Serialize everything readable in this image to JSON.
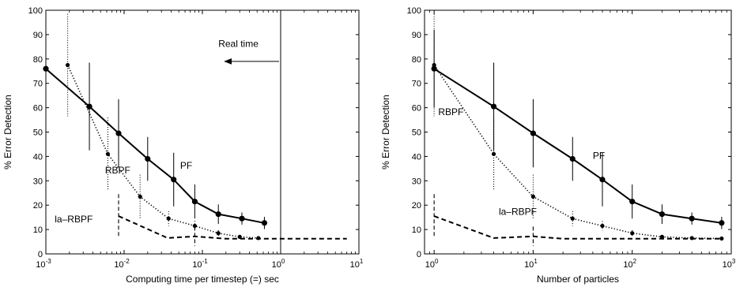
{
  "chart_data": [
    {
      "type": "line",
      "xscale": "log",
      "xlim": [
        0.001,
        10
      ],
      "ylim": [
        0,
        100
      ],
      "xlabel": "Computing time per timestep (=) sec",
      "ylabel": "% Error Detection",
      "xticks": [
        0.001,
        0.01,
        0.1,
        1,
        10
      ],
      "xtick_labels": [
        [
          "10",
          "-3"
        ],
        [
          "10",
          "-2"
        ],
        [
          "10",
          "-1"
        ],
        [
          "10",
          "0"
        ],
        [
          "10",
          "1"
        ]
      ],
      "yticks": [
        0,
        10,
        20,
        30,
        40,
        50,
        60,
        70,
        80,
        90,
        100
      ],
      "series": [
        {
          "name": "PF",
          "style": "solid",
          "color": "#000000",
          "x": [
            0.001,
            0.0036,
            0.0085,
            0.02,
            0.043,
            0.08,
            0.16,
            0.32,
            0.62
          ],
          "y": [
            76,
            60.5,
            49.5,
            39,
            30.5,
            21.5,
            16.3,
            14.5,
            12.7
          ],
          "err": [
            16,
            18,
            14,
            9,
            11,
            7,
            4,
            2.5,
            2.5
          ]
        },
        {
          "name": "RBPF",
          "style": "dotted",
          "color": "#000000",
          "x": [
            0.0019,
            0.0062,
            0.016,
            0.037,
            0.08,
            0.16,
            0.3,
            0.52
          ],
          "y": [
            77.5,
            41,
            23.5,
            14.5,
            11.5,
            8.5,
            7,
            6.5
          ],
          "err": [
            21,
            15,
            9,
            3,
            2,
            1.2,
            0.8,
            0.5
          ]
        },
        {
          "name": "la–RBPF",
          "style": "dashed",
          "color": "#000000",
          "x": [
            0.0085,
            0.036,
            0.08,
            0.2,
            0.5,
            1,
            3,
            7
          ],
          "y": [
            15.5,
            6.5,
            7.2,
            6.2,
            6.2,
            6.2,
            6.2,
            6.2
          ],
          "err": [
            9,
            0,
            4,
            0,
            0,
            0,
            0,
            0
          ]
        }
      ],
      "annotations": [
        {
          "text": "PF",
          "x": 0.052,
          "y": 35
        },
        {
          "text": "RBPF",
          "x": 0.0057,
          "y": 33
        },
        {
          "text": "la–RBPF",
          "x": 0.0013,
          "y": 13
        },
        {
          "text": "Real time",
          "x": 0.16,
          "y": 85
        }
      ],
      "vline_x": 1
    },
    {
      "type": "line",
      "xscale": "log",
      "xlim": [
        0.8,
        1000
      ],
      "ylim": [
        0,
        100
      ],
      "xlabel": "Number of particles",
      "ylabel": "% Error Detection",
      "xticks": [
        1,
        10,
        100,
        1000
      ],
      "xtick_labels": [
        [
          "10",
          "0"
        ],
        [
          "10",
          "1"
        ],
        [
          "10",
          "2"
        ],
        [
          "10",
          "3"
        ]
      ],
      "yticks": [
        0,
        10,
        20,
        30,
        40,
        50,
        60,
        70,
        80,
        90,
        100
      ],
      "series": [
        {
          "name": "PF",
          "style": "solid",
          "color": "#000000",
          "x": [
            1,
            4,
            10,
            25,
            50,
            100,
            200,
            400,
            800
          ],
          "y": [
            76,
            60.5,
            49.5,
            39,
            30.5,
            21.5,
            16.3,
            14.5,
            12.7
          ],
          "err": [
            16,
            18,
            14,
            9,
            11,
            7,
            4,
            2.5,
            2.5
          ]
        },
        {
          "name": "RBPF",
          "style": "dotted",
          "color": "#000000",
          "x": [
            1,
            4,
            10,
            25,
            50,
            100,
            200,
            400,
            800
          ],
          "y": [
            77.5,
            41,
            23.5,
            14.5,
            11.5,
            8.5,
            7,
            6.5,
            6.3
          ],
          "err": [
            21,
            15,
            9,
            3,
            2,
            1.2,
            0.8,
            0.5,
            0.4
          ]
        },
        {
          "name": "la–RBPF",
          "style": "dashed",
          "color": "#000000",
          "x": [
            1,
            4,
            10,
            20,
            40,
            100,
            200,
            400,
            800
          ],
          "y": [
            15.5,
            6.5,
            7.2,
            6.2,
            6.2,
            6.2,
            6.2,
            6.2,
            6.2
          ],
          "err": [
            9,
            0,
            4,
            0,
            0,
            0,
            0,
            0,
            0
          ]
        }
      ],
      "annotations": [
        {
          "text": "PF",
          "x": 40,
          "y": 39
        },
        {
          "text": "RBPF",
          "x": 1.1,
          "y": 57
        },
        {
          "text": "la–RBPF",
          "x": 4.5,
          "y": 16
        }
      ]
    }
  ]
}
